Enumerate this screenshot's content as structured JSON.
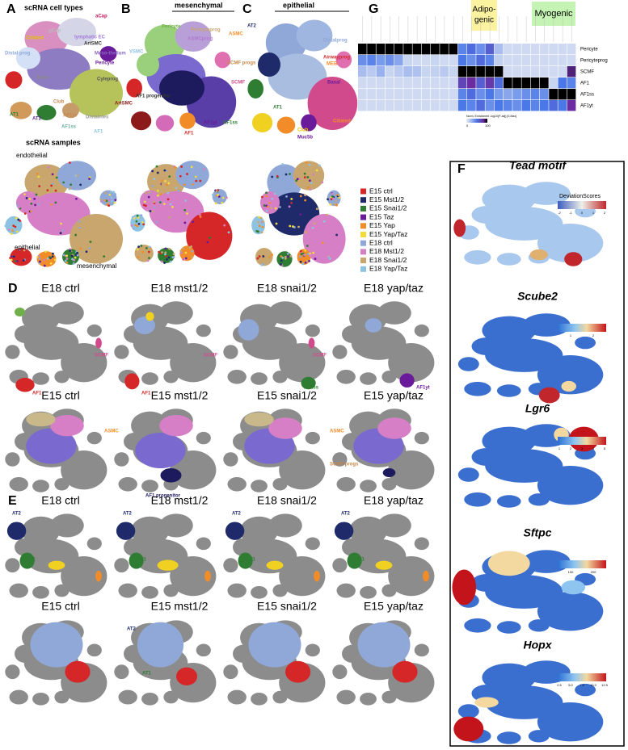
{
  "panel_a": {
    "letter": "A",
    "title": "scRNA cell types",
    "labels": [
      "aCap",
      "gCap",
      "lymphatic EC",
      "Ciliated",
      "ArtSMC",
      "Distal prog",
      "Meso-thelium",
      "Pericyte",
      "Cyleprog",
      "Basal",
      "Club",
      "AT1",
      "AT2",
      "AF1yt",
      "AF1ss",
      "Distalmes",
      "AF1"
    ],
    "samples_title": "scRNA samples",
    "sample_labels": [
      "endothelial",
      "epithelial",
      "mesenchymal"
    ]
  },
  "panel_b": {
    "letter": "B",
    "title": "mesenchymal",
    "labels": [
      "Pericyte",
      "Pericyteprog",
      "ASMCprog",
      "ASMC",
      "VSMC",
      "SCMF progs",
      "SCMF",
      "AF1 progenitor",
      "ArtSMC",
      "AF1",
      "AF1yt",
      "AF1ss"
    ]
  },
  "panel_c": {
    "letter": "C",
    "title": "epithelial",
    "labels": [
      "AT2",
      "Distalprog",
      "Airwayprog",
      "MEB",
      "Basal",
      "AT1",
      "Club",
      "Muc5b",
      "Ciliated"
    ]
  },
  "legend": [
    {
      "name": "E15 ctrl",
      "color": "#d62728"
    },
    {
      "name": "E15 Mst1/2",
      "color": "#1f2a6b"
    },
    {
      "name": "E15 Snai1/2",
      "color": "#2e7d32"
    },
    {
      "name": "E15 Taz",
      "color": "#6a1b9a"
    },
    {
      "name": "E15 Yap",
      "color": "#f28c28"
    },
    {
      "name": "E15 Yap/Taz",
      "color": "#f2dc3c"
    },
    {
      "name": "E18 ctrl",
      "color": "#8fa8d8"
    },
    {
      "name": "E18 Mst1/2",
      "color": "#d77fc6"
    },
    {
      "name": "E18 Snai1/2",
      "color": "#c8a66e"
    },
    {
      "name": "E18 Yap/Taz",
      "color": "#8dc3e0"
    }
  ],
  "panel_g": {
    "letter": "G",
    "groups": [
      [
        "Adipo-",
        "genic"
      ],
      [
        "Myogenic"
      ]
    ],
    "rows": [
      "Pericyte",
      "Pericyteprog",
      "SCMF",
      "AF1",
      "AF1ss",
      "AF1yt"
    ],
    "values": [
      [
        100,
        100,
        100,
        100,
        100,
        100,
        100,
        100,
        100,
        100,
        100,
        45,
        55,
        40,
        60,
        20,
        8,
        8,
        8,
        8,
        8,
        8,
        8,
        8
      ],
      [
        40,
        45,
        35,
        40,
        30,
        10,
        8,
        8,
        10,
        8,
        8,
        50,
        40,
        55,
        45,
        12,
        8,
        8,
        8,
        8,
        8,
        8,
        8,
        8
      ],
      [
        20,
        15,
        25,
        10,
        15,
        20,
        18,
        10,
        12,
        15,
        10,
        100,
        100,
        100,
        100,
        100,
        8,
        8,
        8,
        8,
        8,
        8,
        8,
        85
      ],
      [
        8,
        8,
        8,
        8,
        8,
        8,
        8,
        8,
        8,
        8,
        8,
        70,
        80,
        60,
        75,
        55,
        100,
        100,
        100,
        100,
        100,
        10,
        50,
        45
      ],
      [
        8,
        8,
        8,
        8,
        8,
        8,
        8,
        8,
        8,
        8,
        8,
        45,
        55,
        40,
        50,
        35,
        30,
        35,
        40,
        45,
        40,
        100,
        100,
        100
      ],
      [
        8,
        8,
        8,
        8,
        8,
        8,
        8,
        8,
        8,
        8,
        8,
        50,
        45,
        55,
        40,
        50,
        45,
        40,
        50,
        45,
        50,
        55,
        50,
        80
      ]
    ],
    "legend_title": "Norm. Enrichment -log10(P-adj) [0-Max]",
    "legend_ticks": [
      "0",
      "100"
    ]
  },
  "panel_d": {
    "letter": "D",
    "titles": [
      "E18 ctrl",
      "E18 mst1/2",
      "E18 snai1/2",
      "E18 yap/taz",
      "E15 ctrl",
      "E15 mst1/2",
      "E15 snai1/2",
      "E15 yap/taz"
    ],
    "labels": [
      "SCMF",
      "AF1",
      "SCMF",
      "AF1",
      "SCMF",
      "AF1ss",
      "AF1yt",
      "ASMC",
      "AF1 progenitor",
      "ASMC",
      "SCMF progs"
    ]
  },
  "panel_e": {
    "letter": "E",
    "titles": [
      "E18 ctrl",
      "E18 mst1/2",
      "E18 snai1/2",
      "E18 yap/taz",
      "E15 ctrl",
      "E15 mst1/2",
      "E15 snai1/2",
      "E15 yap/taz"
    ],
    "labels": [
      "AT2",
      "AT1",
      "AT2",
      "AT1",
      "AT2",
      "AT1",
      "AT2",
      "AT1",
      "AT2",
      "AT1"
    ]
  },
  "panel_f": {
    "letter": "F",
    "scale_title": "DeviationScores",
    "genes": [
      {
        "name": "Tead motif",
        "ticks": [
          "-2",
          "-1",
          "0",
          "1",
          "2"
        ]
      },
      {
        "name": "Scube2",
        "ticks": [
          "1",
          "2"
        ]
      },
      {
        "name": "Lgr6",
        "ticks": [
          "1",
          "2",
          "3",
          "4",
          "5"
        ]
      },
      {
        "name": "Sftpc",
        "ticks": [
          "100",
          "200"
        ]
      },
      {
        "name": "Hopx",
        "ticks": [
          "2.5",
          "5.0",
          "7.5",
          "10.0",
          "12.5"
        ]
      }
    ]
  }
}
